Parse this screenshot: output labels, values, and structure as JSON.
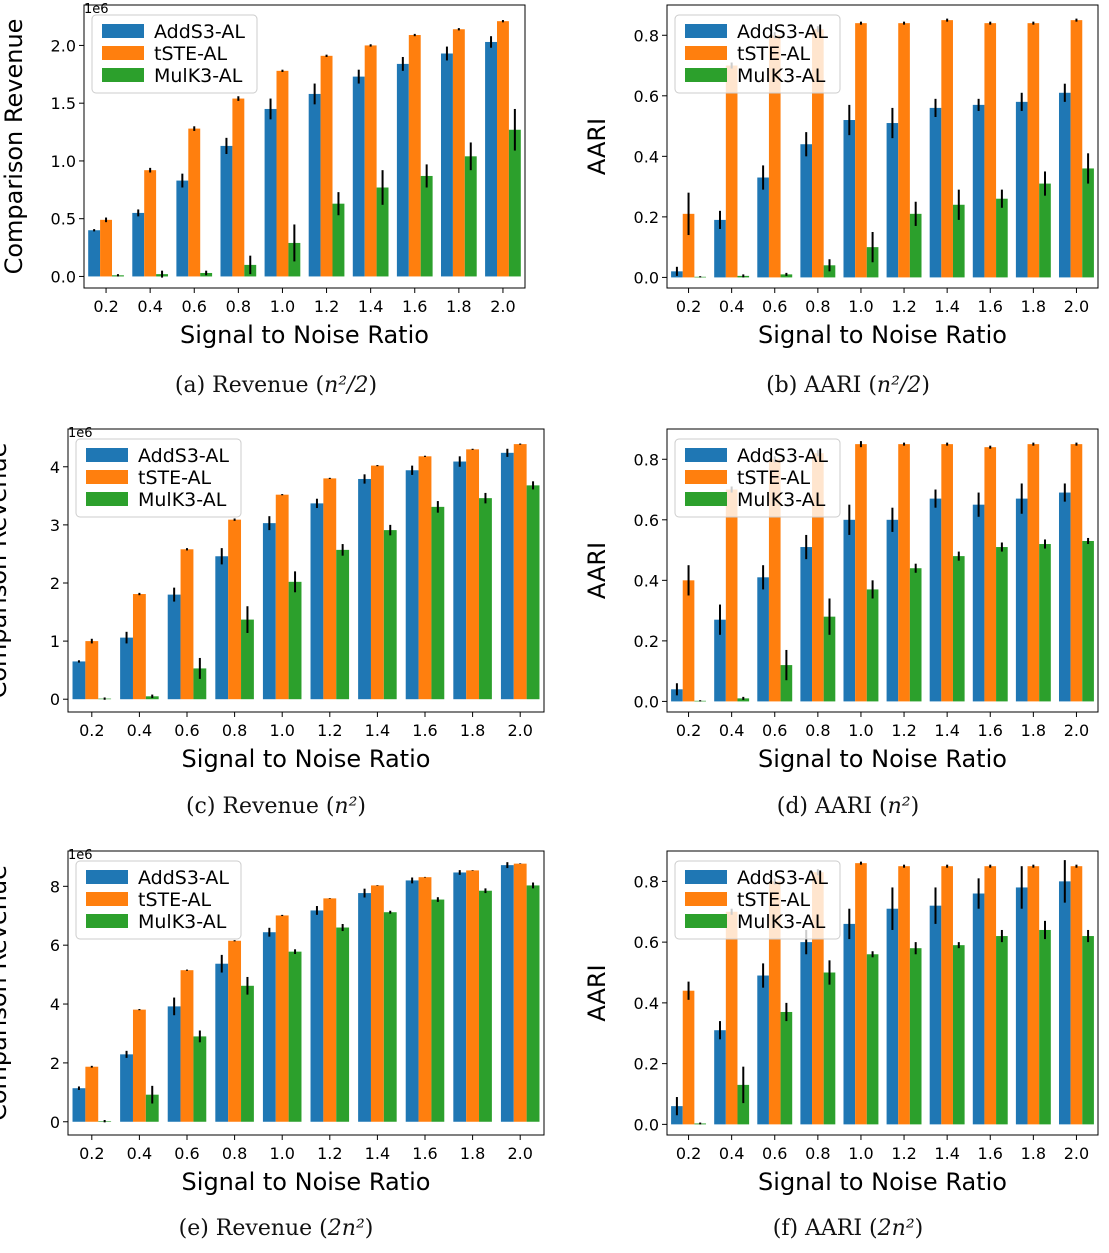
{
  "figure": {
    "colors": {
      "AddS3-AL": "#1f77b4",
      "tSTE-AL": "#ff7f0e",
      "MulK3-AL": "#2ca02c",
      "error": "#000000"
    },
    "legend_entries": [
      "AddS3-AL",
      "tSTE-AL",
      "MulK3-AL"
    ],
    "legend_placement": "upper-left",
    "panels": [
      {
        "id": "a",
        "caption": "(a) Revenue (n²/2)",
        "caption_prefix": "(a) Revenue (",
        "caption_math": "n²/2",
        "caption_suffix": ")",
        "chart_data": {
          "type": "bar",
          "categories": [
            "0.2",
            "0.4",
            "0.6",
            "0.8",
            "1.0",
            "1.2",
            "1.4",
            "1.6",
            "1.8",
            "2.0"
          ],
          "xlabel": "Signal to Noise Ratio",
          "ylabel": "Comparison Revenue",
          "scale_label": "1e6",
          "ylim": [
            -0.1,
            2.35
          ],
          "yticks": [
            0.0,
            0.5,
            1.0,
            1.5,
            2.0
          ],
          "ytick_labels": [
            "0.0",
            "0.5",
            "1.0",
            "1.5",
            "2.0"
          ],
          "grid": false,
          "series": [
            {
              "name": "AddS3-AL",
              "values": [
                0.4,
                0.55,
                0.83,
                1.13,
                1.45,
                1.58,
                1.73,
                1.84,
                1.93,
                2.03
              ],
              "errors": [
                0.01,
                0.03,
                0.06,
                0.07,
                0.09,
                0.09,
                0.06,
                0.06,
                0.06,
                0.05
              ]
            },
            {
              "name": "tSTE-AL",
              "values": [
                0.49,
                0.92,
                1.28,
                1.54,
                1.78,
                1.91,
                2.0,
                2.09,
                2.14,
                2.21
              ],
              "errors": [
                0.02,
                0.02,
                0.02,
                0.02,
                0.01,
                0.01,
                0.01,
                0.01,
                0.01,
                0.01
              ]
            },
            {
              "name": "MulK3-AL",
              "values": [
                0.01,
                0.02,
                0.03,
                0.1,
                0.29,
                0.63,
                0.77,
                0.87,
                1.04,
                1.27
              ],
              "errors": [
                0.01,
                0.03,
                0.02,
                0.08,
                0.16,
                0.1,
                0.15,
                0.1,
                0.12,
                0.18
              ]
            }
          ]
        }
      },
      {
        "id": "b",
        "caption": "(b) AARI (n²/2)",
        "caption_prefix": "(b) AARI (",
        "caption_math": "n²/2",
        "caption_suffix": ")",
        "chart_data": {
          "type": "bar",
          "categories": [
            "0.2",
            "0.4",
            "0.6",
            "0.8",
            "1.0",
            "1.2",
            "1.4",
            "1.6",
            "1.8",
            "2.0"
          ],
          "xlabel": "Signal to Noise Ratio",
          "ylabel": "AARI",
          "scale_label": "",
          "ylim": [
            -0.035,
            0.9
          ],
          "yticks": [
            0.0,
            0.2,
            0.4,
            0.6,
            0.8
          ],
          "ytick_labels": [
            "0.0",
            "0.2",
            "0.4",
            "0.6",
            "0.8"
          ],
          "grid": false,
          "series": [
            {
              "name": "AddS3-AL",
              "values": [
                0.02,
                0.19,
                0.33,
                0.44,
                0.52,
                0.51,
                0.56,
                0.57,
                0.58,
                0.61
              ],
              "errors": [
                0.015,
                0.03,
                0.04,
                0.04,
                0.05,
                0.05,
                0.03,
                0.02,
                0.03,
                0.03
              ]
            },
            {
              "name": "tSTE-AL",
              "values": [
                0.21,
                0.7,
                0.8,
                0.82,
                0.84,
                0.84,
                0.85,
                0.84,
                0.84,
                0.85
              ],
              "errors": [
                0.07,
                0.01,
                0.01,
                0.01,
                0.005,
                0.005,
                0.005,
                0.005,
                0.005,
                0.005
              ]
            },
            {
              "name": "MulK3-AL",
              "values": [
                0.002,
                0.005,
                0.01,
                0.04,
                0.1,
                0.21,
                0.24,
                0.26,
                0.31,
                0.36
              ],
              "errors": [
                0.002,
                0.005,
                0.005,
                0.02,
                0.05,
                0.04,
                0.05,
                0.03,
                0.04,
                0.05
              ]
            }
          ]
        }
      },
      {
        "id": "c",
        "caption": "(c) Revenue (n²)",
        "caption_prefix": "(c) Revenue (",
        "caption_math": "n²",
        "caption_suffix": ")",
        "chart_data": {
          "type": "bar",
          "categories": [
            "0.2",
            "0.4",
            "0.6",
            "0.8",
            "1.0",
            "1.2",
            "1.4",
            "1.6",
            "1.8",
            "2.0"
          ],
          "xlabel": "Signal to Noise Ratio",
          "ylabel": "Comparison Revenue",
          "scale_label": "1e6",
          "ylim": [
            -0.22,
            4.65
          ],
          "yticks": [
            0,
            1,
            2,
            3,
            4
          ],
          "ytick_labels": [
            "0",
            "1",
            "2",
            "3",
            "4"
          ],
          "grid": false,
          "series": [
            {
              "name": "AddS3-AL",
              "values": [
                0.65,
                1.06,
                1.8,
                2.46,
                3.03,
                3.37,
                3.79,
                3.94,
                4.09,
                4.24
              ],
              "errors": [
                0.02,
                0.1,
                0.12,
                0.14,
                0.12,
                0.08,
                0.08,
                0.08,
                0.09,
                0.07
              ]
            },
            {
              "name": "tSTE-AL",
              "values": [
                1.0,
                1.81,
                2.58,
                3.09,
                3.52,
                3.8,
                4.02,
                4.18,
                4.3,
                4.39
              ],
              "errors": [
                0.04,
                0.02,
                0.02,
                0.02,
                0.01,
                0.01,
                0.01,
                0.01,
                0.01,
                0.01
              ]
            },
            {
              "name": "MulK3-AL",
              "values": [
                0.01,
                0.05,
                0.53,
                1.37,
                2.02,
                2.57,
                2.91,
                3.31,
                3.46,
                3.68
              ],
              "errors": [
                0.02,
                0.03,
                0.18,
                0.23,
                0.18,
                0.1,
                0.09,
                0.1,
                0.09,
                0.07
              ]
            }
          ]
        }
      },
      {
        "id": "d",
        "caption": "(d) AARI (n²)",
        "caption_prefix": "(d) AARI (",
        "caption_math": "n²",
        "caption_suffix": ")",
        "chart_data": {
          "type": "bar",
          "categories": [
            "0.2",
            "0.4",
            "0.6",
            "0.8",
            "1.0",
            "1.2",
            "1.4",
            "1.6",
            "1.8",
            "2.0"
          ],
          "xlabel": "Signal to Noise Ratio",
          "ylabel": "AARI",
          "scale_label": "",
          "ylim": [
            -0.035,
            0.9
          ],
          "yticks": [
            0.0,
            0.2,
            0.4,
            0.6,
            0.8
          ],
          "ytick_labels": [
            "0.0",
            "0.2",
            "0.4",
            "0.6",
            "0.8"
          ],
          "grid": false,
          "series": [
            {
              "name": "AddS3-AL",
              "values": [
                0.04,
                0.27,
                0.41,
                0.51,
                0.6,
                0.6,
                0.67,
                0.65,
                0.67,
                0.69
              ],
              "errors": [
                0.02,
                0.05,
                0.04,
                0.04,
                0.05,
                0.04,
                0.03,
                0.04,
                0.05,
                0.03
              ]
            },
            {
              "name": "tSTE-AL",
              "values": [
                0.4,
                0.7,
                0.8,
                0.82,
                0.85,
                0.85,
                0.85,
                0.84,
                0.85,
                0.85
              ],
              "errors": [
                0.05,
                0.01,
                0.01,
                0.01,
                0.01,
                0.005,
                0.005,
                0.005,
                0.005,
                0.005
              ]
            },
            {
              "name": "MulK3-AL",
              "values": [
                0.002,
                0.01,
                0.12,
                0.28,
                0.37,
                0.44,
                0.48,
                0.51,
                0.52,
                0.53
              ],
              "errors": [
                0.002,
                0.005,
                0.05,
                0.06,
                0.03,
                0.015,
                0.015,
                0.015,
                0.015,
                0.01
              ]
            }
          ]
        }
      },
      {
        "id": "e",
        "caption": "(e) Revenue (2n²)",
        "caption_prefix": "(e) Revenue (",
        "caption_math": "2n²",
        "caption_suffix": ")",
        "chart_data": {
          "type": "bar",
          "categories": [
            "0.2",
            "0.4",
            "0.6",
            "0.8",
            "1.0",
            "1.2",
            "1.4",
            "1.6",
            "1.8",
            "2.0"
          ],
          "xlabel": "Signal to Noise Ratio",
          "ylabel": "Comparison Revenue",
          "scale_label": "1e6",
          "ylim": [
            -0.45,
            9.2
          ],
          "yticks": [
            0,
            2,
            4,
            6,
            8
          ],
          "ytick_labels": [
            "0",
            "2",
            "4",
            "6",
            "8"
          ],
          "grid": false,
          "series": [
            {
              "name": "AddS3-AL",
              "values": [
                1.14,
                2.29,
                3.92,
                5.37,
                6.44,
                7.18,
                7.77,
                8.2,
                8.47,
                8.72
              ],
              "errors": [
                0.06,
                0.12,
                0.3,
                0.3,
                0.15,
                0.15,
                0.15,
                0.1,
                0.08,
                0.1
              ]
            },
            {
              "name": "tSTE-AL",
              "values": [
                1.87,
                3.81,
                5.15,
                6.15,
                7.01,
                7.59,
                8.03,
                8.31,
                8.54,
                8.77
              ],
              "errors": [
                0.03,
                0.02,
                0.02,
                0.02,
                0.02,
                0.01,
                0.01,
                0.01,
                0.01,
                0.01
              ]
            },
            {
              "name": "MulK3-AL",
              "values": [
                0.02,
                0.92,
                2.9,
                4.62,
                5.78,
                6.6,
                7.12,
                7.55,
                7.85,
                8.03
              ],
              "errors": [
                0.04,
                0.3,
                0.2,
                0.3,
                0.08,
                0.12,
                0.05,
                0.08,
                0.08,
                0.1
              ]
            }
          ]
        }
      },
      {
        "id": "f",
        "caption": "(f) AARI (2n²)",
        "caption_prefix": "(f) AARI (",
        "caption_math": "2n²",
        "caption_suffix": ")",
        "chart_data": {
          "type": "bar",
          "categories": [
            "0.2",
            "0.4",
            "0.6",
            "0.8",
            "1.0",
            "1.2",
            "1.4",
            "1.6",
            "1.8",
            "2.0"
          ],
          "xlabel": "Signal to Noise Ratio",
          "ylabel": "AARI",
          "scale_label": "",
          "ylim": [
            -0.035,
            0.9
          ],
          "yticks": [
            0.0,
            0.2,
            0.4,
            0.6,
            0.8
          ],
          "ytick_labels": [
            "0.0",
            "0.2",
            "0.4",
            "0.6",
            "0.8"
          ],
          "grid": false,
          "series": [
            {
              "name": "AddS3-AL",
              "values": [
                0.06,
                0.31,
                0.49,
                0.6,
                0.66,
                0.71,
                0.72,
                0.76,
                0.78,
                0.8
              ],
              "errors": [
                0.03,
                0.03,
                0.04,
                0.04,
                0.05,
                0.07,
                0.06,
                0.05,
                0.07,
                0.07
              ]
            },
            {
              "name": "tSTE-AL",
              "values": [
                0.44,
                0.7,
                0.8,
                0.83,
                0.86,
                0.85,
                0.85,
                0.85,
                0.85,
                0.85
              ],
              "errors": [
                0.03,
                0.01,
                0.01,
                0.01,
                0.005,
                0.005,
                0.005,
                0.005,
                0.005,
                0.005
              ]
            },
            {
              "name": "MulK3-AL",
              "values": [
                0.003,
                0.13,
                0.37,
                0.5,
                0.56,
                0.58,
                0.59,
                0.62,
                0.64,
                0.62
              ],
              "errors": [
                0.003,
                0.06,
                0.03,
                0.04,
                0.01,
                0.02,
                0.01,
                0.02,
                0.03,
                0.02
              ]
            }
          ]
        }
      }
    ]
  }
}
